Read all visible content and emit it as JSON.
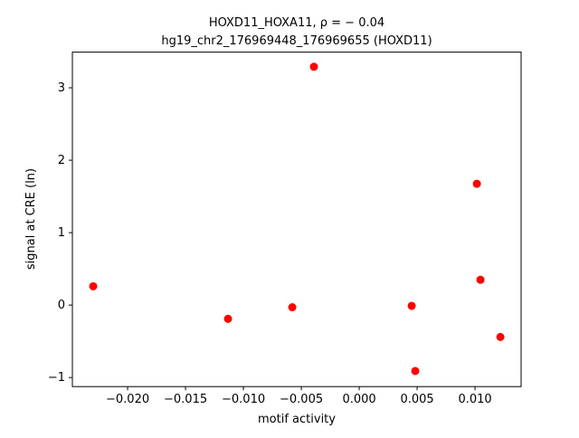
{
  "chart_data": {
    "type": "scatter",
    "title": "HOXD11_HOXA11, ρ = − 0.04",
    "subtitle": "hg19_chr2_176969448_176969655 (HOXD11)",
    "x_label": "motif activity",
    "y_label": "signal at CRE (ln)",
    "color": "#ff0000",
    "x": [
      -0.02297,
      -0.01133,
      -0.00578,
      -0.00391,
      0.00453,
      0.00484,
      0.01016,
      0.01047,
      0.01219
    ],
    "values": [
      0.26,
      -0.19,
      -0.03,
      3.29,
      -0.01,
      -0.91,
      1.675,
      0.35,
      -0.44
    ],
    "xlim": [
      -0.02477,
      0.01398
    ],
    "ylim": [
      -1.125,
      3.4925
    ],
    "xticks": [
      {
        "value": -0.02,
        "label": "−0.020"
      },
      {
        "value": -0.015,
        "label": "−0.015"
      },
      {
        "value": -0.01,
        "label": "−0.010"
      },
      {
        "value": -0.005,
        "label": "−0.005"
      },
      {
        "value": 0,
        "label": "0.000"
      },
      {
        "value": 0.005,
        "label": "0.005"
      },
      {
        "value": 0.01,
        "label": "0.010"
      }
    ],
    "yticks": [
      {
        "value": -1,
        "label": "−1"
      },
      0,
      1,
      2,
      3
    ]
  }
}
